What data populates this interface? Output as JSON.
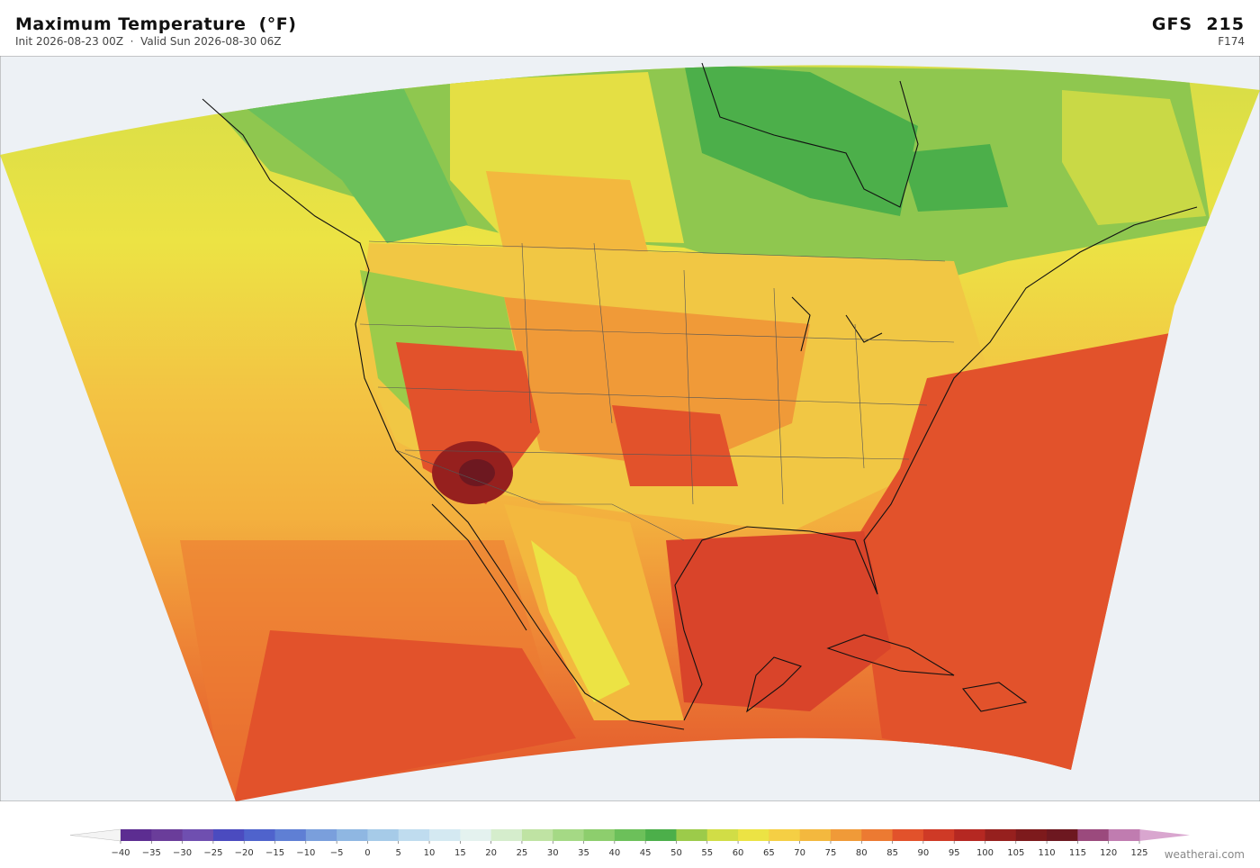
{
  "header": {
    "title": "Maximum Temperature  (°F)",
    "subtitle": "Init 2026-08-23 00Z  ·  Valid Sun 2026-08-30 06Z",
    "model": "GFS  215",
    "forecast_hour": "F174"
  },
  "colorbar": {
    "ticks": [
      "−40",
      "−35",
      "−30",
      "−25",
      "−20",
      "−15",
      "−10",
      "−5",
      "0",
      "5",
      "10",
      "15",
      "20",
      "25",
      "30",
      "35",
      "40",
      "45",
      "50",
      "55",
      "60",
      "65",
      "70",
      "75",
      "80",
      "85",
      "90",
      "95",
      "100",
      "105",
      "110",
      "115",
      "120",
      "125"
    ],
    "colors": [
      "#5c2d91",
      "#6a3d9a",
      "#6f4fb0",
      "#4b4bbf",
      "#4f63cc",
      "#5f7fd4",
      "#7a9fdc",
      "#8fb7e2",
      "#a6cbe8",
      "#bfdcef",
      "#d4e9f2",
      "#e4f2ef",
      "#d5edcc",
      "#bfe3a3",
      "#a5d985",
      "#8dce6d",
      "#6cc05a",
      "#4caf4a",
      "#9ccb4a",
      "#d1dd46",
      "#ece344",
      "#f5cf44",
      "#f3b83e",
      "#f09a38",
      "#ec7a32",
      "#e2522b",
      "#cf3a26",
      "#b52822",
      "#96201e",
      "#7d1a1c",
      "#6d1820",
      "#9b4a7d",
      "#c07cb0"
    ],
    "under_color": "#f4f4f4",
    "over_color": "#d9a6cf"
  },
  "footer": {
    "credit": "weatherai.com"
  }
}
